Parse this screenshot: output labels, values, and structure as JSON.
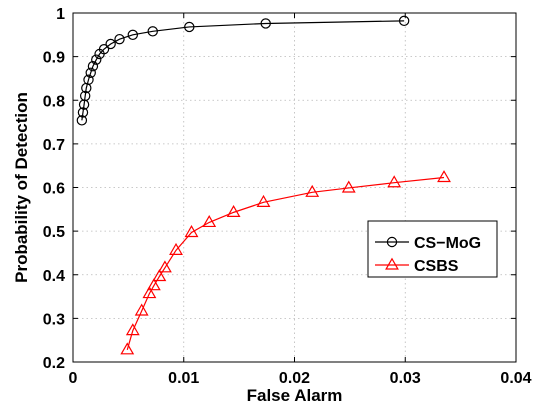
{
  "chart_data": {
    "type": "line",
    "title": "",
    "xlabel": "False Alarm",
    "ylabel": "Probability of Detection",
    "xlim": [
      0,
      0.04
    ],
    "ylim": [
      0.2,
      1
    ],
    "xticks": [
      "0",
      "0.01",
      "0.02",
      "0.03",
      "0.04"
    ],
    "yticks": [
      "0.2",
      "0.3",
      "0.4",
      "0.5",
      "0.6",
      "0.7",
      "0.8",
      "0.9",
      "1"
    ],
    "grid": true,
    "legend_position": "center-right",
    "series": [
      {
        "name": "CS−MoG",
        "color": "#000000",
        "marker": "circle",
        "x": [
          0.0008,
          0.0009,
          0.001,
          0.0011,
          0.0012,
          0.0014,
          0.0016,
          0.0018,
          0.0021,
          0.0024,
          0.0028,
          0.0034,
          0.0042,
          0.0054,
          0.0072,
          0.0105,
          0.0174,
          0.0299
        ],
        "y": [
          0.754,
          0.772,
          0.79,
          0.81,
          0.828,
          0.847,
          0.863,
          0.878,
          0.893,
          0.906,
          0.917,
          0.929,
          0.94,
          0.95,
          0.958,
          0.968,
          0.976,
          0.982
        ]
      },
      {
        "name": "CSBS",
        "color": "#ff0000",
        "marker": "triangle",
        "x": [
          0.0049,
          0.0054,
          0.0062,
          0.0069,
          0.0073,
          0.0078,
          0.0083,
          0.0093,
          0.0107,
          0.0123,
          0.0145,
          0.0172,
          0.0216,
          0.0249,
          0.029,
          0.0335
        ],
        "y": [
          0.228,
          0.272,
          0.317,
          0.357,
          0.375,
          0.396,
          0.416,
          0.456,
          0.497,
          0.52,
          0.543,
          0.566,
          0.589,
          0.599,
          0.611,
          0.623
        ]
      }
    ]
  }
}
